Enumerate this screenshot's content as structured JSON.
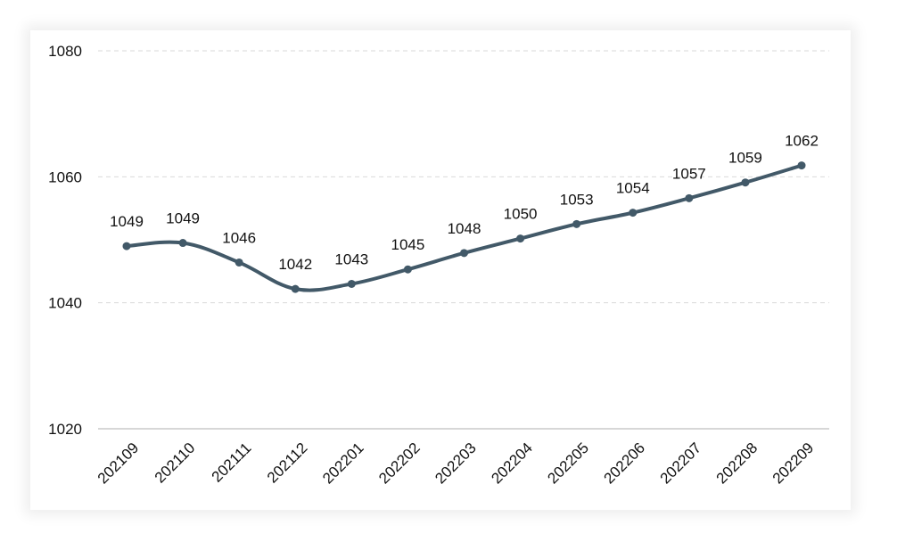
{
  "chart_data": {
    "type": "line",
    "smooth": true,
    "categories": [
      "202109",
      "202110",
      "202111",
      "202112",
      "202201",
      "202202",
      "202203",
      "202204",
      "202205",
      "202206",
      "202207",
      "202208",
      "202209"
    ],
    "series": [
      {
        "values": [
          1049,
          1049.5,
          1046.4,
          1042.2,
          1043.0,
          1045.3,
          1047.9,
          1050.2,
          1052.5,
          1054.3,
          1056.6,
          1059.1,
          1061.8
        ],
        "labels": [
          "1049",
          "1049",
          "1046",
          "1042",
          "1043",
          "1045",
          "1048",
          "1050",
          "1053",
          "1054",
          "1057",
          "1059",
          "1062"
        ],
        "color": "#425968"
      }
    ],
    "yticks": [
      "1020",
      "1040",
      "1060",
      "1080"
    ],
    "ylim": [
      1020,
      1080
    ],
    "grid": true,
    "legend": "none"
  }
}
